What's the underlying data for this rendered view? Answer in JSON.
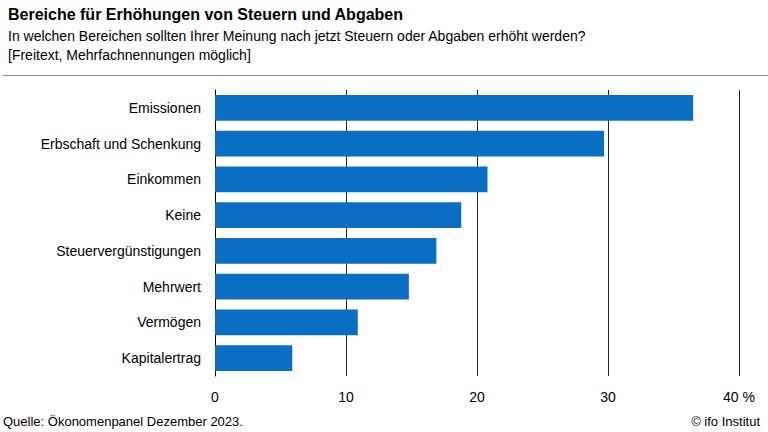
{
  "chart_data": {
    "type": "bar",
    "orientation": "horizontal",
    "title": "Bereiche für Erhöhungen von Steuern und Abgaben",
    "subtitle": "In welchen Bereichen sollten Ihrer Meinung nach jetzt Steuern oder Abgaben erhöht werden?\n[Freitext, Mehrfachnennungen möglich]",
    "categories": [
      "Emissionen",
      "Erbschaft und Schenkung",
      "Einkommen",
      "Keine",
      "Steuervergünstigungen",
      "Mehrwert",
      "Vermögen",
      "Kapitalertrag"
    ],
    "values": [
      36.5,
      29.7,
      20.8,
      18.8,
      16.9,
      14.8,
      10.9,
      5.9
    ],
    "color": "#0a6fc2",
    "xlim": [
      0,
      40
    ],
    "xticks": [
      0,
      10,
      20,
      30,
      {
        "value": 40,
        "label": "40 %"
      }
    ],
    "grid": true,
    "annotations": [
      "Quelle: Ökonomenpanel Dezember 2023.",
      "© ifo Institut"
    ]
  }
}
